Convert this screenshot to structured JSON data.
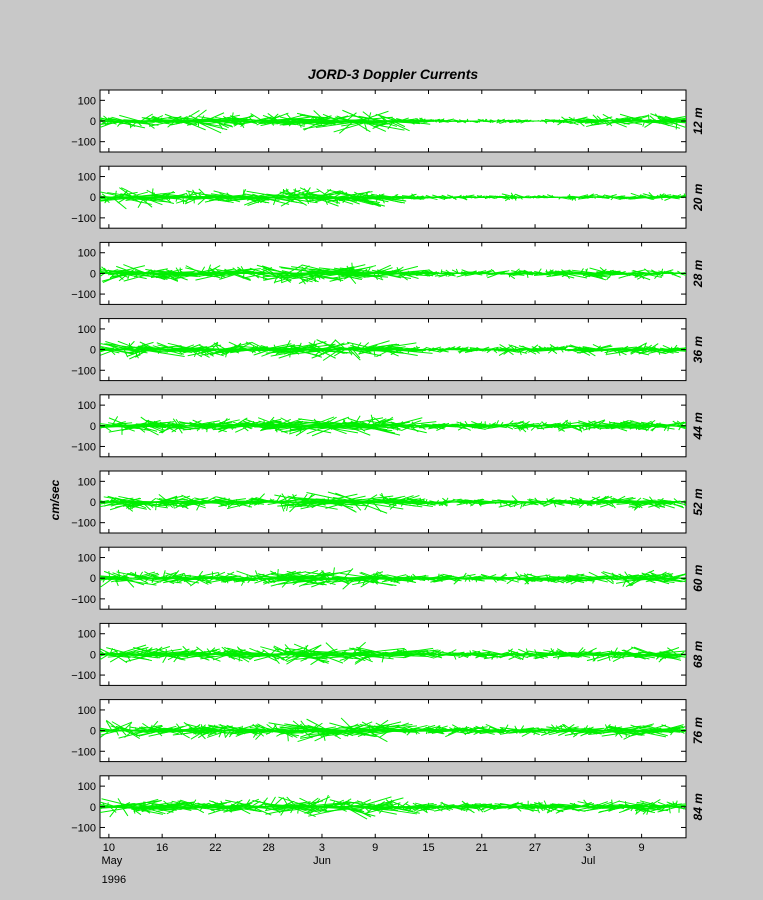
{
  "colors": {
    "background": "#c8c8c8",
    "axes": "#ffffff",
    "series": "#00ee00"
  },
  "chart_data": {
    "type": "stick-plot",
    "title": "JORD-3  Doppler Currents",
    "ylabel": "cm/sec",
    "ylim": [
      -150,
      150
    ],
    "yticks": [
      100,
      0,
      -100
    ],
    "ytick_labels": [
      "100",
      "0",
      "−100"
    ],
    "xlim_days": [
      0,
      66
    ],
    "xticks": [
      {
        "day": 1,
        "label": "10",
        "sub": "May",
        "year": "1996"
      },
      {
        "day": 7,
        "label": "16"
      },
      {
        "day": 13,
        "label": "22"
      },
      {
        "day": 19,
        "label": "28"
      },
      {
        "day": 25,
        "label": "3",
        "sub": "Jun"
      },
      {
        "day": 31,
        "label": "9"
      },
      {
        "day": 37,
        "label": "15"
      },
      {
        "day": 43,
        "label": "21"
      },
      {
        "day": 49,
        "label": "27"
      },
      {
        "day": 55,
        "label": "3",
        "sub": "Jul"
      },
      {
        "day": 61,
        "label": "9"
      }
    ],
    "series": [
      {
        "name": "12 m",
        "amplitude": [
          20,
          50,
          30,
          40,
          44,
          30,
          20,
          30,
          40,
          50,
          60,
          50,
          45,
          40,
          40,
          35,
          30,
          35,
          40,
          40,
          35,
          40,
          38,
          32,
          40,
          50,
          55,
          52,
          60,
          60,
          60,
          50,
          50,
          40,
          18,
          15,
          15,
          10,
          12,
          10,
          8,
          10,
          8,
          10,
          12,
          14,
          10,
          12,
          6,
          5,
          12,
          15,
          20,
          25,
          22,
          24,
          28,
          32,
          35,
          30,
          32,
          38,
          42,
          45,
          48,
          50
        ]
      },
      {
        "name": "20 m",
        "amplitude": [
          30,
          55,
          50,
          45,
          48,
          40,
          35,
          28,
          30,
          32,
          35,
          38,
          40,
          40,
          38,
          36,
          35,
          38,
          40,
          42,
          45,
          45,
          45,
          45,
          45,
          45,
          48,
          50,
          50,
          45,
          40,
          38,
          30,
          20,
          18,
          16,
          15,
          15,
          12,
          12,
          15,
          10,
          12,
          10,
          12,
          18,
          20,
          15,
          12,
          8,
          10,
          15,
          15,
          15,
          18,
          15,
          12,
          15,
          10,
          12,
          18,
          20,
          22,
          25,
          22,
          20
        ]
      },
      {
        "name": "28 m",
        "amplitude": [
          30,
          60,
          50,
          48,
          45,
          45,
          40,
          35,
          30,
          30,
          35,
          40,
          40,
          42,
          40,
          38,
          36,
          38,
          40,
          42,
          45,
          48,
          50,
          50,
          50,
          52,
          55,
          50,
          48,
          50,
          50,
          45,
          40,
          35,
          20,
          18,
          15,
          18,
          20,
          20,
          22,
          20,
          18,
          20,
          22,
          25,
          28,
          25,
          20,
          22,
          25,
          28,
          30,
          30,
          35,
          30,
          28,
          30,
          32,
          35,
          30,
          28,
          25,
          22,
          20,
          15
        ]
      },
      {
        "name": "36 m",
        "amplitude": [
          30,
          60,
          55,
          50,
          50,
          45,
          40,
          38,
          35,
          35,
          38,
          40,
          40,
          40,
          38,
          36,
          36,
          38,
          40,
          42,
          45,
          45,
          45,
          45,
          45,
          50,
          50,
          48,
          48,
          50,
          50,
          45,
          40,
          35,
          20,
          18,
          15,
          15,
          18,
          18,
          20,
          20,
          18,
          18,
          20,
          25,
          28,
          25,
          22,
          20,
          22,
          25,
          25,
          28,
          30,
          30,
          28,
          28,
          30,
          32,
          35,
          30,
          28,
          25,
          22,
          20
        ]
      },
      {
        "name": "44 m",
        "amplitude": [
          30,
          55,
          50,
          48,
          45,
          45,
          40,
          38,
          35,
          35,
          38,
          40,
          40,
          40,
          40,
          38,
          38,
          40,
          40,
          42,
          45,
          45,
          45,
          48,
          50,
          50,
          55,
          55,
          55,
          55,
          52,
          50,
          48,
          45,
          30,
          25,
          22,
          20,
          22,
          25,
          25,
          22,
          20,
          22,
          25,
          28,
          30,
          28,
          25,
          22,
          25,
          28,
          30,
          30,
          30,
          32,
          30,
          30,
          32,
          35,
          38,
          35,
          32,
          30,
          28,
          25
        ]
      },
      {
        "name": "52 m",
        "amplitude": [
          30,
          50,
          45,
          45,
          40,
          40,
          38,
          35,
          32,
          32,
          35,
          38,
          38,
          38,
          36,
          35,
          35,
          38,
          40,
          42,
          45,
          45,
          48,
          48,
          50,
          52,
          55,
          58,
          60,
          55,
          50,
          45,
          40,
          35,
          25,
          22,
          20,
          18,
          20,
          22,
          25,
          22,
          20,
          20,
          22,
          25,
          28,
          30,
          28,
          25,
          25,
          28,
          30,
          30,
          28,
          30,
          30,
          32,
          35,
          38,
          40,
          38,
          35,
          32,
          30,
          28
        ]
      },
      {
        "name": "60 m",
        "amplitude": [
          30,
          50,
          45,
          42,
          40,
          40,
          38,
          35,
          32,
          32,
          35,
          38,
          38,
          38,
          36,
          35,
          35,
          38,
          40,
          42,
          42,
          45,
          45,
          48,
          50,
          52,
          55,
          55,
          55,
          52,
          50,
          45,
          40,
          35,
          25,
          22,
          20,
          20,
          22,
          25,
          28,
          25,
          22,
          20,
          22,
          25,
          28,
          30,
          28,
          25,
          25,
          28,
          30,
          30,
          30,
          30,
          30,
          32,
          35,
          38,
          40,
          38,
          35,
          32,
          30,
          28
        ]
      },
      {
        "name": "68 m",
        "amplitude": [
          30,
          55,
          50,
          45,
          42,
          42,
          40,
          38,
          35,
          35,
          38,
          40,
          40,
          40,
          38,
          36,
          36,
          38,
          40,
          42,
          45,
          45,
          48,
          50,
          50,
          52,
          55,
          55,
          55,
          55,
          52,
          50,
          45,
          40,
          28,
          25,
          22,
          22,
          25,
          25,
          28,
          25,
          22,
          22,
          25,
          28,
          30,
          32,
          30,
          28,
          28,
          30,
          30,
          32,
          30,
          32,
          32,
          35,
          38,
          40,
          42,
          40,
          38,
          35,
          32,
          28
        ]
      },
      {
        "name": "76 m",
        "amplitude": [
          30,
          50,
          50,
          45,
          42,
          42,
          40,
          38,
          35,
          35,
          38,
          40,
          40,
          40,
          38,
          38,
          38,
          40,
          42,
          45,
          45,
          48,
          50,
          52,
          55,
          55,
          58,
          60,
          58,
          55,
          52,
          50,
          45,
          40,
          30,
          28,
          25,
          25,
          28,
          28,
          30,
          28,
          25,
          25,
          28,
          30,
          32,
          32,
          30,
          28,
          28,
          30,
          32,
          32,
          32,
          32,
          32,
          35,
          38,
          40,
          42,
          40,
          38,
          35,
          32,
          30
        ]
      },
      {
        "name": "84 m",
        "amplitude": [
          30,
          50,
          48,
          45,
          42,
          42,
          40,
          38,
          35,
          35,
          38,
          40,
          40,
          40,
          38,
          38,
          38,
          40,
          42,
          45,
          45,
          48,
          50,
          52,
          55,
          55,
          58,
          58,
          58,
          55,
          52,
          50,
          45,
          40,
          30,
          28,
          25,
          25,
          28,
          28,
          30,
          28,
          25,
          25,
          28,
          30,
          32,
          32,
          30,
          28,
          28,
          30,
          32,
          32,
          32,
          32,
          32,
          35,
          38,
          40,
          42,
          40,
          38,
          35,
          32,
          30
        ]
      }
    ]
  }
}
